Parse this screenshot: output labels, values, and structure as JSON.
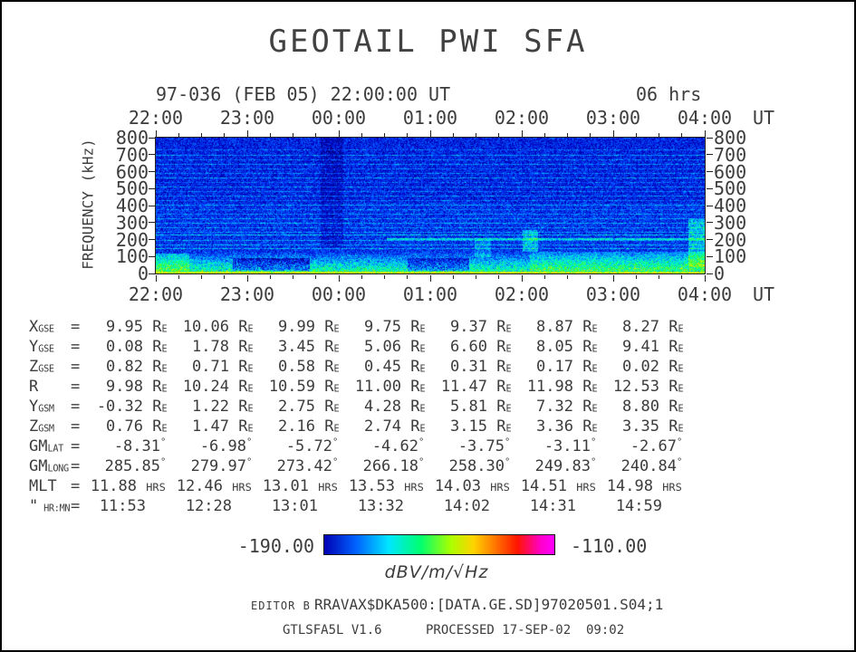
{
  "header": {
    "title": "GEOTAIL PWI SFA",
    "start_label": "97-036 (FEB 05) 22:00:00 UT",
    "duration_label": "06 hrs"
  },
  "chart_data": {
    "type": "heatmap",
    "title": "GEOTAIL PWI SFA",
    "x_ticks": [
      "22:00",
      "23:00",
      "00:00",
      "01:00",
      "02:00",
      "03:00",
      "04:00"
    ],
    "x_axis_unit": "UT",
    "time_span_hours": 6,
    "ylabel": "FREQUENCY (kHz)",
    "y_ticks": [
      "800",
      "700",
      "600",
      "500",
      "400",
      "300",
      "200",
      "100",
      "0"
    ],
    "ylim": [
      0,
      800
    ],
    "colorbar": {
      "min_label": "-190.00",
      "max_label": "-110.00",
      "units_label": "dBV/m/√Hz",
      "gradient": [
        "#0000b4 0%",
        "#0064ff 14%",
        "#00e6ff 28%",
        "#00ff6e 42%",
        "#aaff00 55%",
        "#ffd200 65%",
        "#ff6400 76%",
        "#ff1400 84%",
        "#ff00c8 94%",
        "#ff00ff 100%"
      ]
    },
    "spectrogram": {
      "base": 0.17,
      "noise": 0.17,
      "upper_darken_above_khz": 420,
      "low_band_top_khz": 130,
      "low_band_boost": 0.32,
      "bottom_line_khz": 14,
      "bottom_line_level": 0.58,
      "stripes": [
        {
          "f": 760,
          "a": 0.1,
          "w": 2
        },
        {
          "f": 730,
          "a": 0.07,
          "w": 2
        },
        {
          "f": 700,
          "a": 0.12,
          "w": 2
        },
        {
          "f": 672,
          "a": 0.08,
          "w": 2
        },
        {
          "f": 645,
          "a": 0.1,
          "w": 2
        },
        {
          "f": 618,
          "a": 0.07,
          "w": 2
        },
        {
          "f": 592,
          "a": 0.09,
          "w": 2
        },
        {
          "f": 565,
          "a": 0.11,
          "w": 2
        },
        {
          "f": 538,
          "a": 0.07,
          "w": 2
        },
        {
          "f": 512,
          "a": 0.1,
          "w": 2
        },
        {
          "f": 486,
          "a": 0.08,
          "w": 2
        },
        {
          "f": 460,
          "a": 0.1,
          "w": 2
        },
        {
          "f": 432,
          "a": 0.08,
          "w": 2
        },
        {
          "f": 406,
          "a": 0.1,
          "w": 2
        },
        {
          "f": 380,
          "a": 0.07,
          "w": 2
        },
        {
          "f": 352,
          "a": 0.09,
          "w": 2
        },
        {
          "f": 326,
          "a": 0.1,
          "w": 3
        },
        {
          "f": 298,
          "a": 0.12,
          "w": 3
        },
        {
          "f": 272,
          "a": 0.09,
          "w": 2
        },
        {
          "f": 246,
          "a": 0.1,
          "w": 2
        },
        {
          "f": 228,
          "a": 0.15,
          "w": 3
        },
        {
          "f": 205,
          "a": 0.2,
          "w": 3,
          "x0": 0.42,
          "x1": 1.0
        },
        {
          "f": 196,
          "a": 0.12,
          "w": 2
        },
        {
          "f": 172,
          "a": 0.12,
          "w": 3
        },
        {
          "f": 150,
          "a": 0.13,
          "w": 3
        }
      ],
      "dark_patches": [
        {
          "x0": 0.14,
          "x1": 0.28,
          "f0": 18,
          "f1": 95,
          "drop": 0.16
        },
        {
          "x0": 0.458,
          "x1": 0.57,
          "f0": 18,
          "f1": 95,
          "drop": 0.14
        },
        {
          "x0": 0.3,
          "x1": 0.34,
          "f0": 150,
          "f1": 800,
          "drop": 0.05
        }
      ],
      "bright_patches": [
        {
          "x0": 0.0,
          "x1": 0.06,
          "f0": 10,
          "f1": 120,
          "add": 0.1
        },
        {
          "x0": 0.58,
          "x1": 0.61,
          "f0": 100,
          "f1": 200,
          "add": 0.08
        },
        {
          "x0": 0.667,
          "x1": 0.695,
          "f0": 130,
          "f1": 260,
          "add": 0.12
        },
        {
          "x0": 0.68,
          "x1": 1.0,
          "f0": 20,
          "f1": 130,
          "add": 0.07
        },
        {
          "x0": 0.97,
          "x1": 1.0,
          "f0": 40,
          "f1": 320,
          "add": 0.12
        }
      ]
    }
  },
  "ephemeris": {
    "rows": [
      {
        "label": "X",
        "sub": "GSE",
        "unit": "RE",
        "values": [
          "9.95",
          "10.06",
          "9.99",
          "9.75",
          "9.37",
          "8.87",
          "8.27"
        ]
      },
      {
        "label": "Y",
        "sub": "GSE",
        "unit": "RE",
        "values": [
          "0.08",
          "1.78",
          "3.45",
          "5.06",
          "6.60",
          "8.05",
          "9.41"
        ]
      },
      {
        "label": "Z",
        "sub": "GSE",
        "unit": "RE",
        "values": [
          "0.82",
          "0.71",
          "0.58",
          "0.45",
          "0.31",
          "0.17",
          "0.02"
        ]
      },
      {
        "label": "R",
        "sub": "",
        "unit": "RE",
        "values": [
          "9.98",
          "10.24",
          "10.59",
          "11.00",
          "11.47",
          "11.98",
          "12.53"
        ]
      },
      {
        "label": "Y",
        "sub": "GSM",
        "unit": "RE",
        "values": [
          "-0.32",
          "1.22",
          "2.75",
          "4.28",
          "5.81",
          "7.32",
          "8.80"
        ]
      },
      {
        "label": "Z",
        "sub": "GSM",
        "unit": "RE",
        "values": [
          "0.76",
          "1.47",
          "2.16",
          "2.74",
          "3.15",
          "3.36",
          "3.35"
        ]
      },
      {
        "label": "GM",
        "sub": "LAT",
        "unit": "°",
        "values": [
          "-8.31",
          "-6.98",
          "-5.72",
          "-4.62",
          "-3.75",
          "-3.11",
          "-2.67"
        ]
      },
      {
        "label": "GM",
        "sub": "LONG",
        "unit": "°",
        "values": [
          "285.85",
          "279.97",
          "273.42",
          "266.18",
          "258.30",
          "249.83",
          "240.84"
        ]
      },
      {
        "label": "MLT",
        "sub": "",
        "unit": "HRS",
        "values": [
          "11.88",
          "12.46",
          "13.01",
          "13.53",
          "14.03",
          "14.51",
          "14.98"
        ]
      },
      {
        "label": "\"",
        "sub": " HR:MN",
        "unit": "",
        "values": [
          "11:53",
          "12:28",
          "13:01",
          "13:32",
          "14:02",
          "14:31",
          "14:59"
        ]
      }
    ]
  },
  "footer": {
    "editor": "EDITOR B",
    "file": "RRAVAX$DKA500:[DATA.GE.SD]97020501.S04;1",
    "program": "GTLSFA5L V1.6",
    "processed": "PROCESSED 17-SEP-02  09:02"
  },
  "colors": {
    "text": "#3c3c3c",
    "frame": "#222222"
  }
}
